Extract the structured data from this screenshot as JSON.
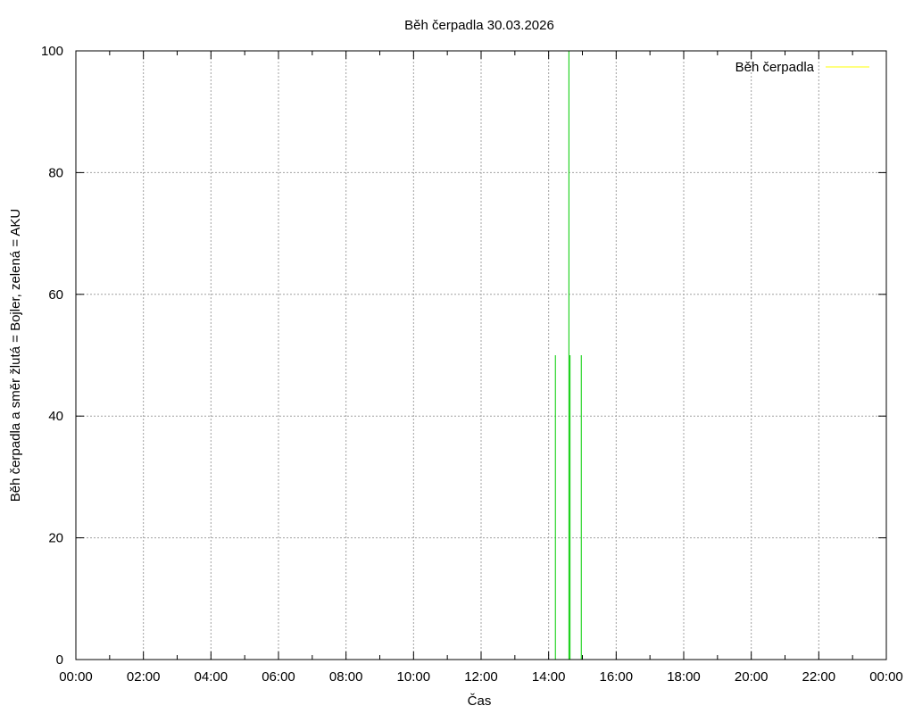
{
  "chart_data": {
    "type": "line",
    "title": "Běh čerpadla 30.03.2026",
    "xlabel": "Čas",
    "ylabel": "Běh čerpadla a směr žlutá = Bojler, zelená = AKU",
    "xlim": [
      "00:00",
      "24:00"
    ],
    "ylim": [
      0,
      100
    ],
    "x_ticks": [
      "00:00",
      "02:00",
      "04:00",
      "06:00",
      "08:00",
      "10:00",
      "12:00",
      "14:00",
      "16:00",
      "18:00",
      "20:00",
      "22:00",
      "00:00"
    ],
    "y_ticks": [
      "0",
      "20",
      "40",
      "60",
      "80",
      "100"
    ],
    "grid": true,
    "legend": {
      "position": "top-right",
      "entries": [
        "Běh čerpadla"
      ]
    },
    "series": [
      {
        "name": "Běh čerpadla",
        "color": "#ffff00",
        "points": []
      },
      {
        "color": "#00cc00",
        "pulses": [
          {
            "time": "14:12",
            "value": 50
          },
          {
            "time": "14:36",
            "value": 100
          },
          {
            "time": "14:38",
            "value": 50
          },
          {
            "time": "14:58",
            "value": 50
          }
        ]
      }
    ]
  }
}
